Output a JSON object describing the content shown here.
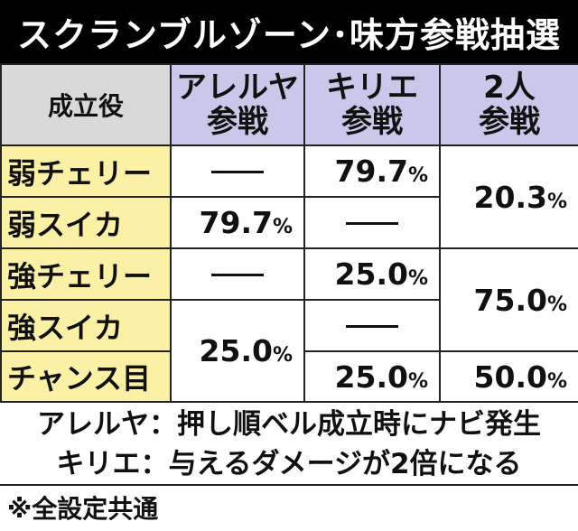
{
  "title": "スクランブルゾーン･味方参戦抽選",
  "table": {
    "header_role": "成立役",
    "col1_line1": "アレルヤ",
    "col1_line2": "参戦",
    "col2_line1": "キリエ",
    "col2_line2": "参戦",
    "col3_line1": "2人",
    "col3_line2": "参戦",
    "roles": [
      "弱チェリー",
      "弱スイカ",
      "強チェリー",
      "強スイカ",
      "チャンス目"
    ],
    "values": {
      "r1_c2": "79.7",
      "r12_c3": "20.3",
      "r2_c1": "79.7",
      "r3_c2": "25.0",
      "r34_c3": "75.0",
      "r45_c1": "25.0",
      "r5_c2": "25.0",
      "r5_c3": "50.0"
    },
    "percent_symbol": "%"
  },
  "notes": [
    "アレルヤ：押し順ベル成立時にナビ発生",
    "キリエ：与えるダメージが2倍になる"
  ],
  "footer": "※全設定共通"
}
